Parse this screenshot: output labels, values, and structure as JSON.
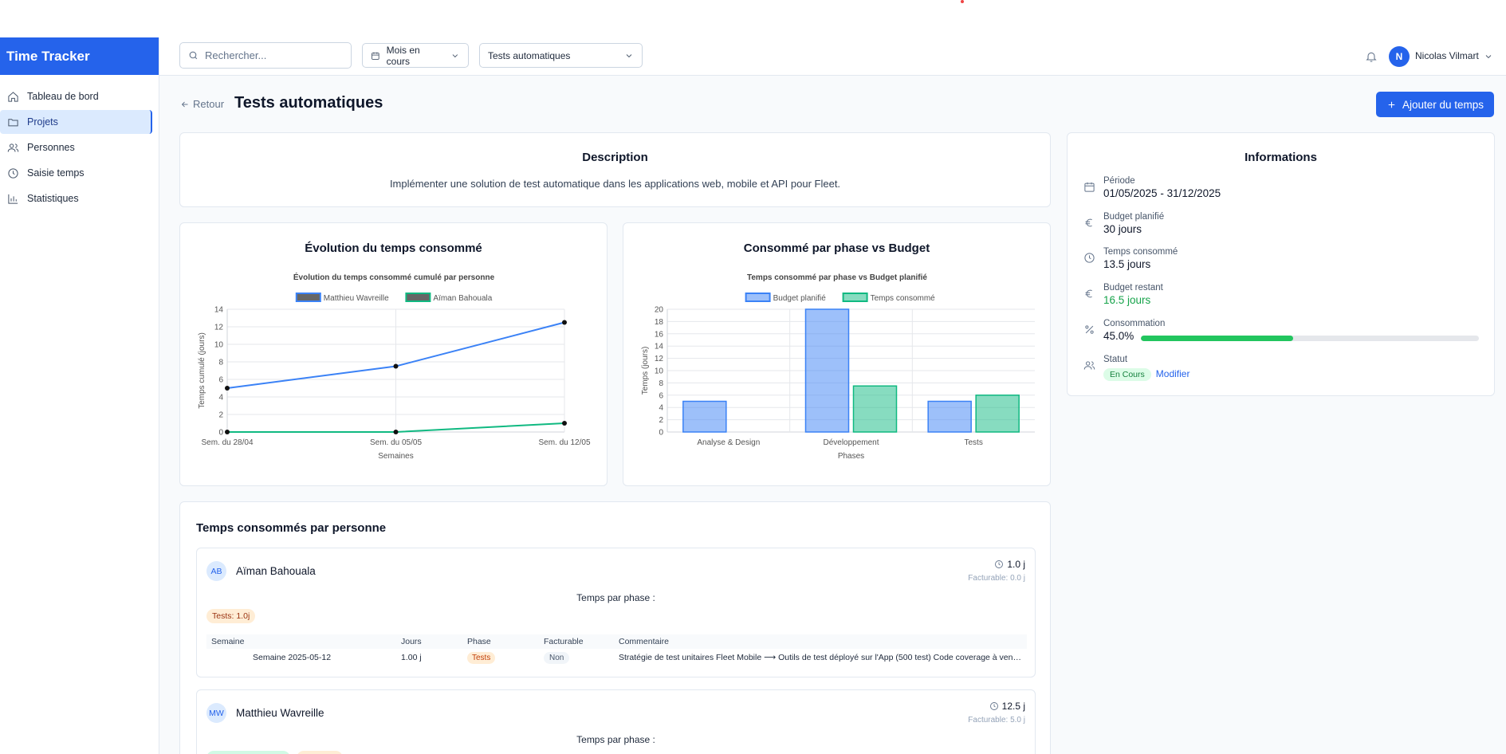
{
  "app": {
    "title": "Time Tracker"
  },
  "sidebar": {
    "items": [
      {
        "label": "Tableau de bord",
        "icon": "home-icon"
      },
      {
        "label": "Projets",
        "icon": "folder-icon",
        "active": true
      },
      {
        "label": "Personnes",
        "icon": "users-icon"
      },
      {
        "label": "Saisie temps",
        "icon": "clock-icon"
      },
      {
        "label": "Statistiques",
        "icon": "bar-chart-icon"
      }
    ]
  },
  "header": {
    "search_placeholder": "Rechercher...",
    "period_select": "Mois en cours",
    "project_select": "Tests automatiques",
    "user_initial": "N",
    "user_name": "Nicolas Vilmart"
  },
  "page": {
    "back_label": "Retour",
    "title": "Tests automatiques",
    "add_time_label": "Ajouter du temps"
  },
  "description": {
    "title": "Description",
    "text": "Implémenter une solution de test automatique dans les applications web, mobile et API pour Fleet."
  },
  "informations": {
    "title": "Informations",
    "period_label": "Période",
    "period_value": "01/05/2025 - 31/12/2025",
    "budget_label": "Budget planifié",
    "budget_value": "30 jours",
    "consumed_label": "Temps consommé",
    "consumed_value": "13.5 jours",
    "remaining_label": "Budget restant",
    "remaining_value": "16.5 jours",
    "consumption_label": "Consommation",
    "consumption_value": "45.0%",
    "consumption_fraction": 0.45,
    "status_label": "Statut",
    "status_value": "En Cours",
    "edit_label": "Modifier"
  },
  "chart_data": [
    {
      "type": "line",
      "card_title": "Évolution du temps consommé",
      "title": "Évolution du temps consommé cumulé par personne",
      "xlabel": "Semaines",
      "ylabel": "Temps cumulé (jours)",
      "categories": [
        "Sem. du 28/04",
        "Sem. du 05/05",
        "Sem. du 12/05"
      ],
      "ylim": [
        0,
        14
      ],
      "yticks": [
        0,
        2,
        4,
        6,
        8,
        10,
        12,
        14
      ],
      "legend_position": "top",
      "grid": true,
      "series": [
        {
          "name": "Matthieu Wavreille",
          "values": [
            5,
            7.5,
            12.5
          ],
          "color": "#3b82f6"
        },
        {
          "name": "Aïman Bahouala",
          "values": [
            0,
            0,
            1
          ],
          "color": "#10b981"
        }
      ]
    },
    {
      "type": "bar",
      "card_title": "Consommé par phase vs Budget",
      "title": "Temps consommé par phase vs Budget planifié",
      "xlabel": "Phases",
      "ylabel": "Temps (jours)",
      "categories": [
        "Analyse & Design",
        "Développement",
        "Tests"
      ],
      "ylim": [
        0,
        20
      ],
      "yticks": [
        0,
        2,
        4,
        6,
        8,
        10,
        12,
        14,
        16,
        18,
        20
      ],
      "legend_position": "top",
      "grid": true,
      "series": [
        {
          "name": "Budget planifié",
          "values": [
            5,
            20,
            5
          ],
          "color": "#3b82f6"
        },
        {
          "name": "Temps consommé",
          "values": [
            0,
            7.5,
            6
          ],
          "color": "#10b981"
        }
      ]
    }
  ],
  "people_section": {
    "title": "Temps consommés par personne",
    "phase_title": "Temps par phase :",
    "columns": [
      "Semaine",
      "Jours",
      "Phase",
      "Facturable",
      "Commentaire"
    ],
    "persons": [
      {
        "initials": "AB",
        "name": "Aïman Bahouala",
        "total": "1.0 j",
        "billable": "Facturable: 0.0 j",
        "phase_badge": "Tests: 1.0j",
        "rows": [
          {
            "week": "Semaine 2025-05-12",
            "days": "1.00 j",
            "phase": "Tests",
            "billable": "Non",
            "comment": "Stratégie de test unitaires Fleet Mobile ⟶ Outils de test déployé sur l'App (500 test) Code coverage à venir ..."
          }
        ]
      },
      {
        "initials": "MW",
        "name": "Matthieu Wavreille",
        "total": "12.5 j",
        "billable": "Facturable: 5.0 j"
      }
    ]
  }
}
